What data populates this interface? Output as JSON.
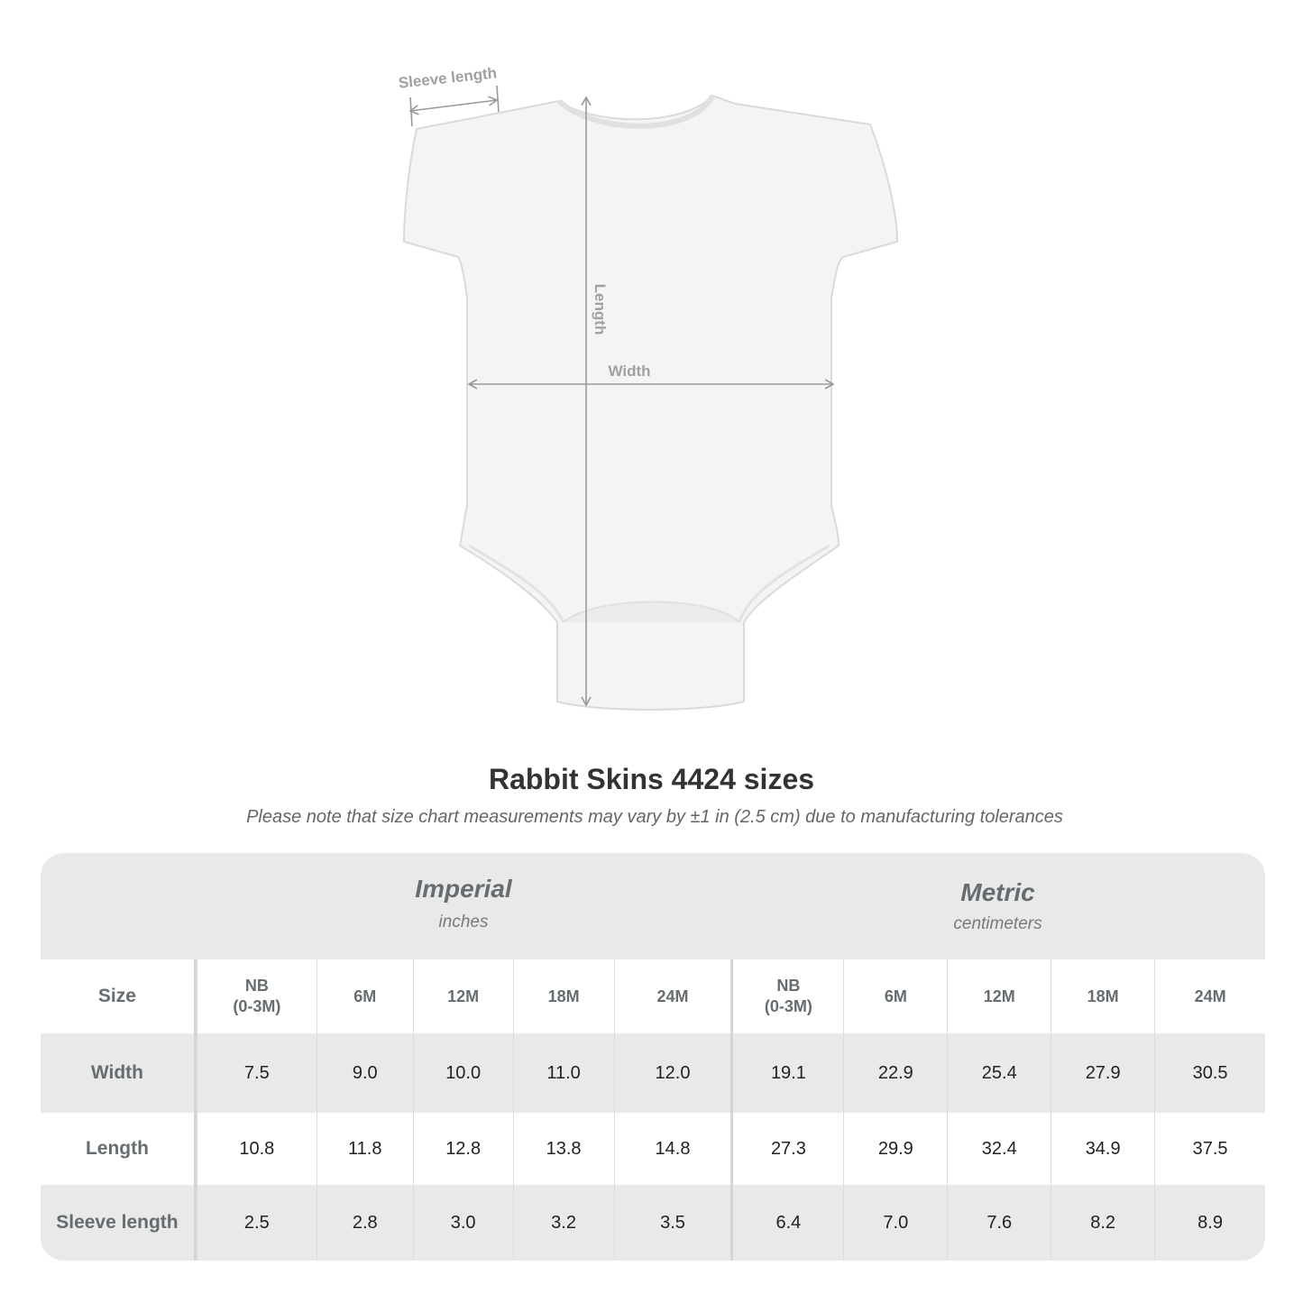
{
  "diagram": {
    "sleeve_label": "Sleeve length",
    "length_label": "Length",
    "width_label": "Width"
  },
  "title": "Rabbit Skins 4424 sizes",
  "note": "Please note that size chart measurements may vary by ±1 in (2.5 cm) due to manufacturing tolerances",
  "table": {
    "imperial": {
      "name": "Imperial",
      "unit": "inches"
    },
    "metric": {
      "name": "Metric",
      "unit": "centimeters"
    },
    "size_label": "Size",
    "sizes": [
      "NB\n(0-3M)",
      "6M",
      "12M",
      "18M",
      "24M",
      "NB\n(0-3M)",
      "6M",
      "12M",
      "18M",
      "24M"
    ],
    "rows": [
      {
        "label": "Width",
        "values": [
          "7.5",
          "9.0",
          "10.0",
          "11.0",
          "12.0",
          "19.1",
          "22.9",
          "25.4",
          "27.9",
          "30.5"
        ]
      },
      {
        "label": "Length",
        "values": [
          "10.8",
          "11.8",
          "12.8",
          "13.8",
          "14.8",
          "27.3",
          "29.9",
          "32.4",
          "34.9",
          "37.5"
        ]
      },
      {
        "label": "Sleeve length",
        "values": [
          "2.5",
          "2.8",
          "3.0",
          "3.2",
          "3.5",
          "6.4",
          "7.0",
          "7.6",
          "8.2",
          "8.9"
        ]
      }
    ]
  }
}
